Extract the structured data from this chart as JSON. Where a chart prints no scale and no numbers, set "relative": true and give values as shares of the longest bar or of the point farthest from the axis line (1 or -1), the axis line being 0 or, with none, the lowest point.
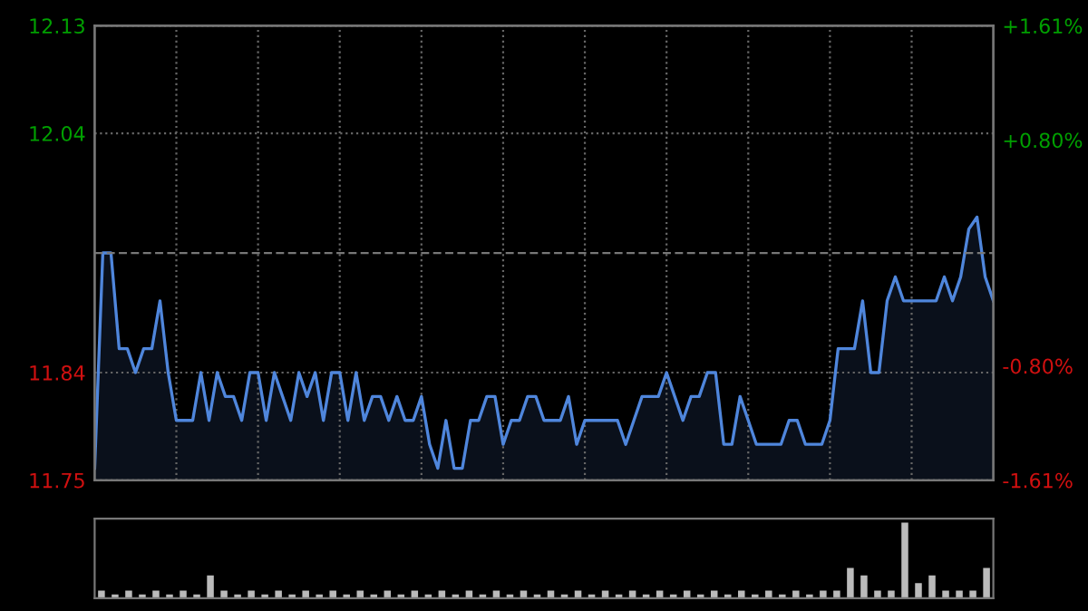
{
  "chart_data": [
    {
      "type": "area",
      "categories": [
        null,
        null,
        null,
        null,
        null,
        null,
        null,
        null,
        null,
        null,
        null,
        null,
        null,
        null,
        null,
        null,
        null,
        null,
        null,
        null,
        null,
        null,
        null,
        null,
        null,
        null,
        null,
        null,
        null,
        null,
        null,
        null,
        null,
        null,
        null,
        null,
        null,
        null,
        null,
        null,
        null,
        null,
        null,
        null,
        null,
        null,
        null,
        null,
        null,
        null,
        null,
        null,
        null,
        null,
        null,
        null,
        null,
        null,
        null,
        null,
        null,
        null,
        null,
        null,
        null,
        null,
        null,
        null,
        null,
        null,
        null,
        null,
        null,
        null,
        null,
        null,
        null,
        null,
        null,
        null,
        null,
        null,
        null,
        null,
        null,
        null,
        null,
        null,
        null,
        null,
        null,
        null,
        null,
        null,
        null,
        null,
        null,
        null,
        null,
        null,
        null,
        null,
        null,
        null,
        null,
        null,
        null,
        null,
        null,
        null,
        null
      ],
      "series": [
        {
          "color": "#4f86dc",
          "values": [
            11.76,
            11.94,
            11.94,
            11.86,
            11.86,
            11.84,
            11.86,
            11.86,
            11.9,
            11.84,
            11.8,
            11.8,
            11.8,
            11.84,
            11.8,
            11.84,
            11.82,
            11.82,
            11.8,
            11.84,
            11.84,
            11.8,
            11.84,
            11.82,
            11.8,
            11.84,
            11.82,
            11.84,
            11.8,
            11.84,
            11.84,
            11.8,
            11.84,
            11.8,
            11.82,
            11.82,
            11.8,
            11.82,
            11.8,
            11.8,
            11.82,
            11.78,
            11.76,
            11.8,
            11.76,
            11.76,
            11.8,
            11.8,
            11.82,
            11.82,
            11.78,
            11.8,
            11.8,
            11.82,
            11.82,
            11.8,
            11.8,
            11.8,
            11.82,
            11.78,
            11.8,
            11.8,
            11.8,
            11.8,
            11.8,
            11.78,
            11.8,
            11.82,
            11.82,
            11.82,
            11.84,
            11.82,
            11.8,
            11.82,
            11.82,
            11.84,
            11.84,
            11.78,
            11.78,
            11.82,
            11.8,
            11.78,
            11.78,
            11.78,
            11.78,
            11.8,
            11.8,
            11.78,
            11.78,
            11.78,
            11.8,
            11.86,
            11.86,
            11.86,
            11.9,
            11.84,
            11.84,
            11.9,
            11.92,
            11.9,
            11.9,
            11.9,
            11.9,
            11.9,
            11.92,
            11.9,
            11.92,
            11.96,
            11.97,
            11.92,
            11.9
          ]
        }
      ],
      "ylim": [
        11.75,
        12.13
      ],
      "yticks": [
        11.75,
        11.84,
        12.04,
        12.13
      ],
      "y2lim": [
        -1.61,
        1.61
      ],
      "y2ticks": [
        {
          "value": -1.61,
          "label": "-1.61%"
        },
        {
          "value": -0.8,
          "label": "-0.80%"
        },
        {
          "value": 0.8,
          "label": "+0.80%"
        },
        {
          "value": 1.61,
          "label": "+1.61%"
        }
      ],
      "ref_lines": [
        {
          "axis": "y",
          "value": 11.94,
          "color": "#777777",
          "line_style": "dashed"
        }
      ],
      "grid": true,
      "tick_labels": "y"
    },
    {
      "type": "bar",
      "relative": true,
      "categories": [
        null,
        null,
        null,
        null,
        null,
        null,
        null,
        null,
        null,
        null,
        null,
        null,
        null,
        null,
        null,
        null,
        null,
        null,
        null,
        null,
        null,
        null,
        null,
        null,
        null,
        null,
        null,
        null,
        null,
        null,
        null,
        null,
        null,
        null,
        null,
        null,
        null,
        null,
        null,
        null,
        null,
        null,
        null,
        null,
        null,
        null,
        null,
        null,
        null,
        null,
        null,
        null,
        null,
        null,
        null,
        null,
        null,
        null,
        null,
        null,
        null,
        null,
        null,
        null,
        null,
        null
      ],
      "values": [
        0.1,
        0.05,
        0.1,
        0.05,
        0.1,
        0.05,
        0.1,
        0.05,
        0.3,
        0.1,
        0.05,
        0.1,
        0.05,
        0.1,
        0.05,
        0.1,
        0.05,
        0.1,
        0.05,
        0.1,
        0.05,
        0.1,
        0.05,
        0.1,
        0.05,
        0.1,
        0.05,
        0.1,
        0.05,
        0.1,
        0.05,
        0.1,
        0.05,
        0.1,
        0.05,
        0.1,
        0.05,
        0.1,
        0.05,
        0.1,
        0.05,
        0.1,
        0.05,
        0.1,
        0.05,
        0.1,
        0.05,
        0.1,
        0.05,
        0.1,
        0.05,
        0.1,
        0.05,
        0.1,
        0.1,
        0.4,
        0.3,
        0.1,
        0.1,
        1.0,
        0.2,
        0.3,
        0.1,
        0.1,
        0.1,
        0.4
      ],
      "color": "#bbbbbb"
    }
  ]
}
